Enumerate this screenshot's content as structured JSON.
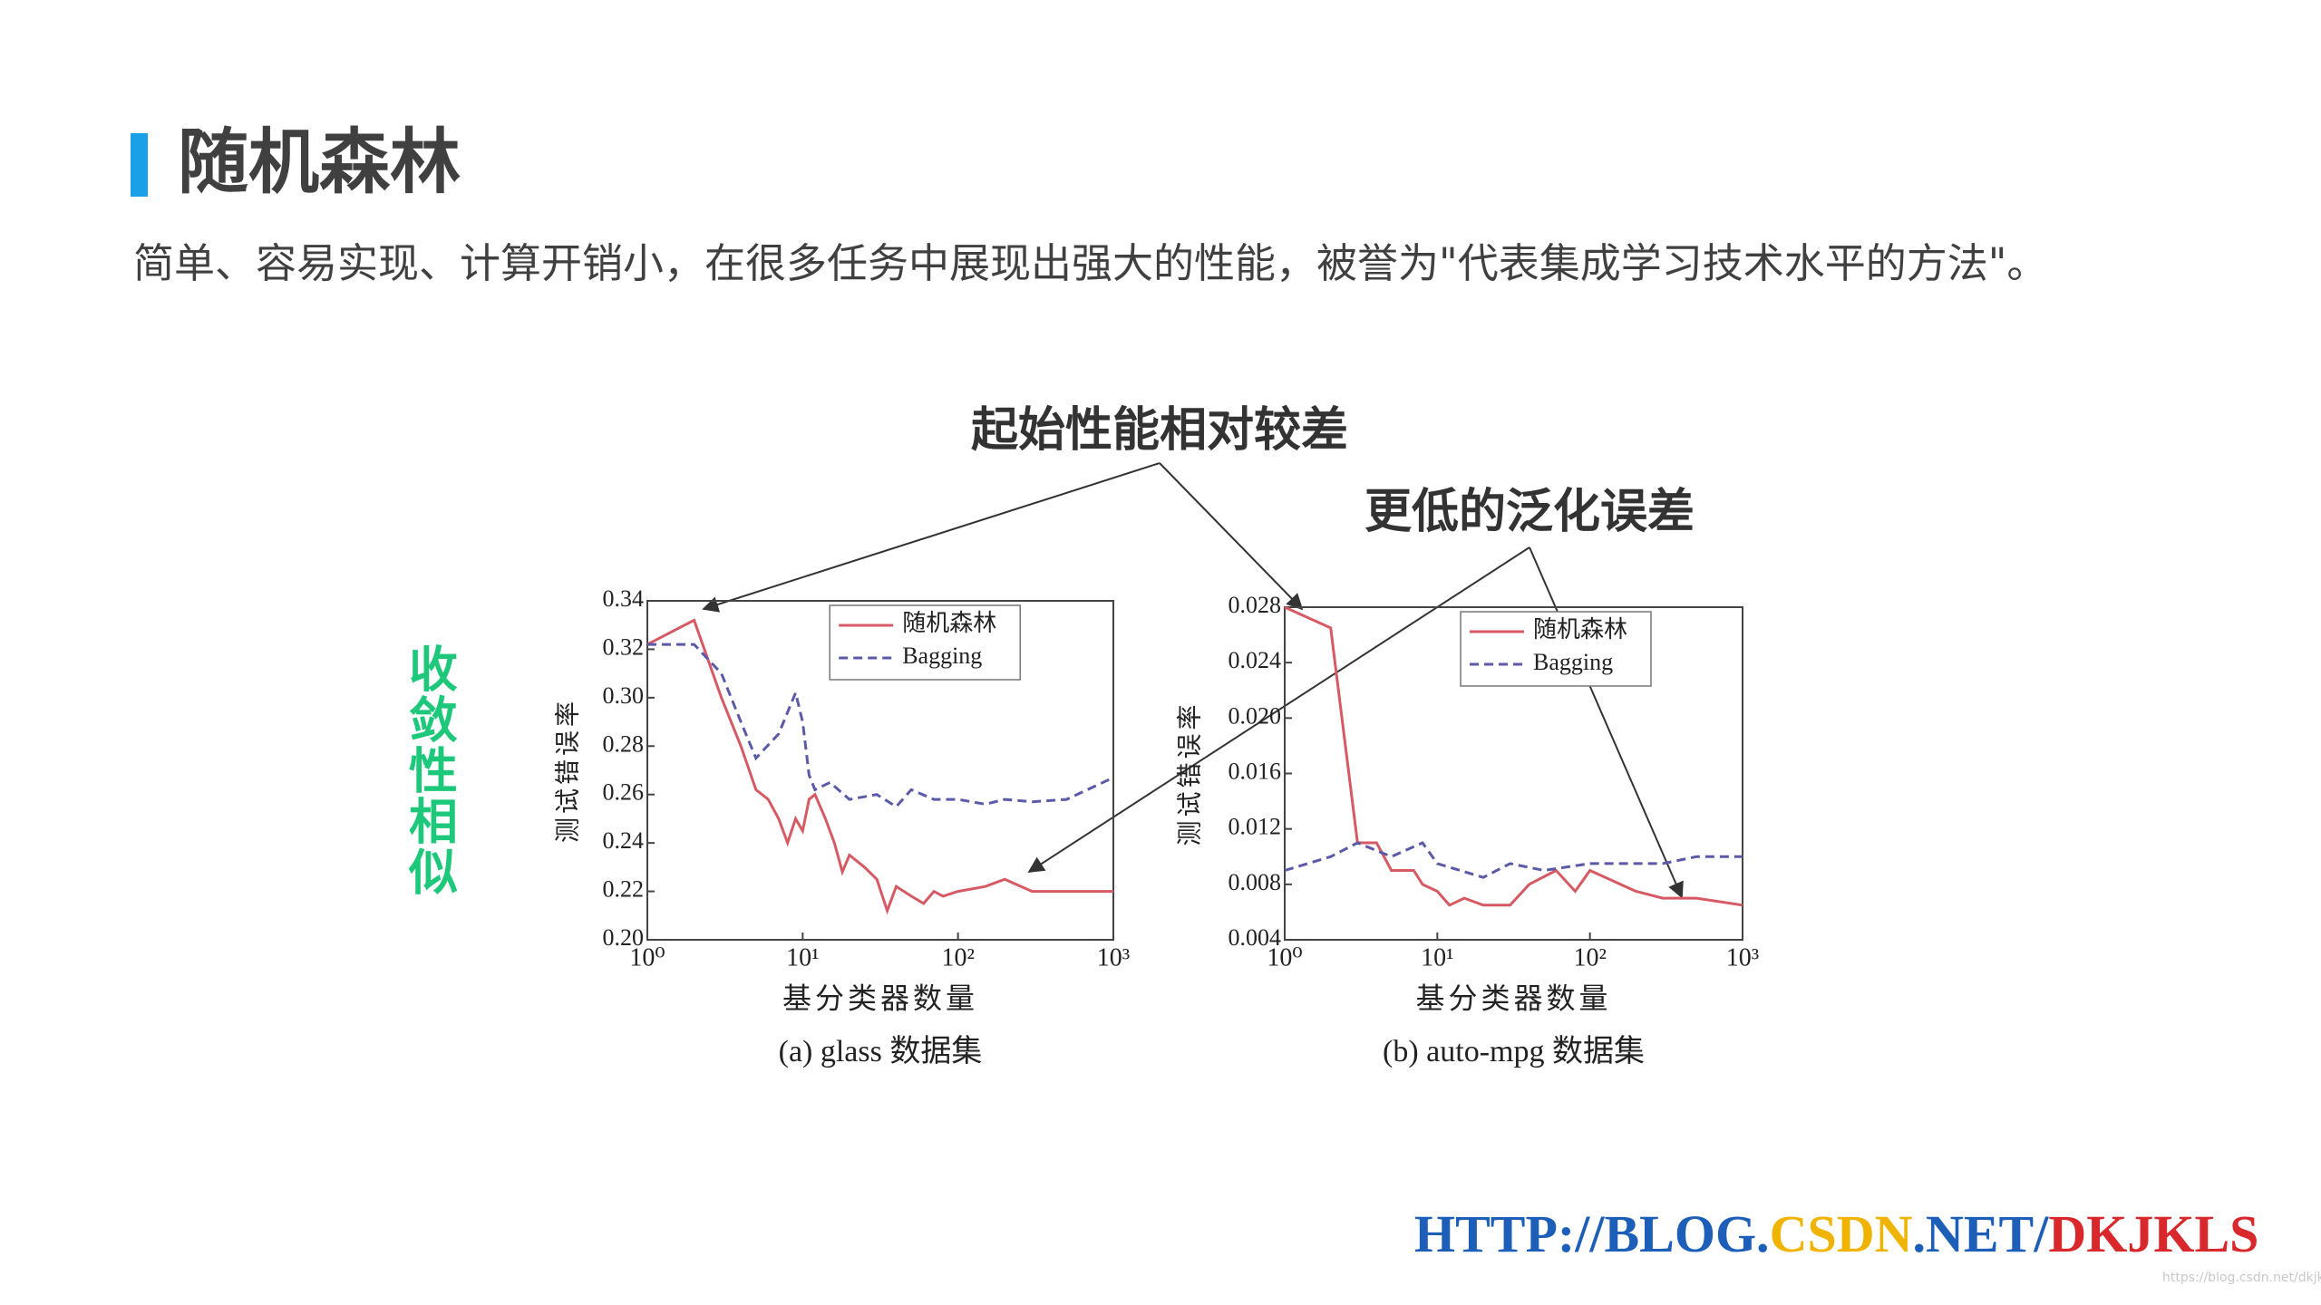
{
  "header": {
    "title": "随机森林",
    "subtitle": "简单、容易实现、计算开销小，在很多任务中展现出强大的性能，被誉为\"代表集成学习技术水平的方法\"。"
  },
  "annotations": {
    "poor_start": "起始性能相对较差",
    "lower_error": "更低的泛化误差",
    "similar_convergence": "收敛性相似"
  },
  "watermark": {
    "part1": "HTTP://BLOG.",
    "part2": "CSDN",
    "part3": ".NET/",
    "part4": "DKJKLS",
    "small": "https://blog.csdn.net/dkjkls"
  },
  "chart_data": [
    {
      "type": "line",
      "xscale": "log",
      "x_label": "基分类器数量",
      "y_label": "测试错误率",
      "caption": "(a) glass 数据集",
      "legend": "upper right",
      "xlim": [
        1,
        1000
      ],
      "xticks": [
        {
          "value": 1,
          "label": "10⁰"
        },
        {
          "value": 10,
          "label": "10¹"
        },
        {
          "value": 100,
          "label": "10²"
        },
        {
          "value": 1000,
          "label": "10³"
        }
      ],
      "ylim": [
        0.2,
        0.34
      ],
      "yticks": [
        {
          "value": 0.2,
          "label": "0.20"
        },
        0.22,
        0.24,
        0.26,
        0.28,
        {
          "value": 0.3,
          "label": "0.30"
        },
        0.32,
        0.34
      ],
      "series": [
        {
          "name": "随机森林",
          "color": "#d65a64",
          "style": "solid",
          "x": [
            1,
            2,
            3,
            4,
            5,
            6,
            7,
            8,
            9,
            10,
            11,
            12,
            14,
            16,
            18,
            20,
            25,
            30,
            35,
            40,
            50,
            60,
            70,
            80,
            100,
            150,
            200,
            300,
            500,
            1000
          ],
          "values": [
            0.322,
            0.332,
            0.3,
            0.28,
            0.262,
            0.258,
            0.25,
            0.24,
            0.25,
            0.245,
            0.258,
            0.26,
            0.25,
            0.24,
            0.228,
            0.235,
            0.23,
            0.225,
            0.212,
            0.222,
            0.218,
            0.215,
            0.22,
            0.218,
            0.22,
            0.222,
            0.225,
            0.22,
            0.22,
            0.22
          ]
        },
        {
          "name": "Bagging",
          "color": "#5a5aa8",
          "style": "dashed",
          "x": [
            1,
            2,
            3,
            4,
            5,
            7,
            9,
            10,
            11,
            12,
            15,
            20,
            30,
            40,
            50,
            70,
            100,
            150,
            200,
            300,
            500,
            1000
          ],
          "values": [
            0.322,
            0.322,
            0.31,
            0.29,
            0.275,
            0.285,
            0.302,
            0.29,
            0.268,
            0.262,
            0.265,
            0.258,
            0.26,
            0.255,
            0.262,
            0.258,
            0.258,
            0.256,
            0.258,
            0.257,
            0.258,
            0.267
          ]
        }
      ]
    },
    {
      "type": "line",
      "xscale": "log",
      "x_label": "基分类器数量",
      "y_label": "测试错误率",
      "caption": "(b) auto-mpg 数据集",
      "legend": "upper right",
      "xlim": [
        1,
        1000
      ],
      "xticks": [
        {
          "value": 1,
          "label": "10⁰"
        },
        {
          "value": 10,
          "label": "10¹"
        },
        {
          "value": 100,
          "label": "10²"
        },
        {
          "value": 1000,
          "label": "10³"
        }
      ],
      "ylim": [
        0.004,
        0.028
      ],
      "yticks": [
        0.004,
        0.008,
        0.012,
        0.016,
        {
          "value": 0.02,
          "label": "0.020"
        },
        0.024,
        0.028
      ],
      "series": [
        {
          "name": "随机森林",
          "color": "#d65a64",
          "style": "solid",
          "x": [
            1,
            2,
            3,
            4,
            5,
            7,
            8,
            10,
            12,
            15,
            20,
            30,
            40,
            60,
            80,
            100,
            200,
            300,
            500,
            1000
          ],
          "values": [
            0.028,
            0.0265,
            0.011,
            0.011,
            0.009,
            0.009,
            0.008,
            0.0075,
            0.0065,
            0.007,
            0.0065,
            0.0065,
            0.008,
            0.009,
            0.0075,
            0.009,
            0.0075,
            0.007,
            0.007,
            0.0065
          ]
        },
        {
          "name": "Bagging",
          "color": "#5a5aa8",
          "style": "dashed",
          "x": [
            1,
            2,
            3,
            5,
            8,
            10,
            20,
            30,
            50,
            100,
            200,
            300,
            500,
            1000
          ],
          "values": [
            0.009,
            0.01,
            0.011,
            0.01,
            0.011,
            0.0095,
            0.0085,
            0.0095,
            0.009,
            0.0095,
            0.0095,
            0.0095,
            0.01,
            0.01
          ]
        }
      ]
    }
  ]
}
